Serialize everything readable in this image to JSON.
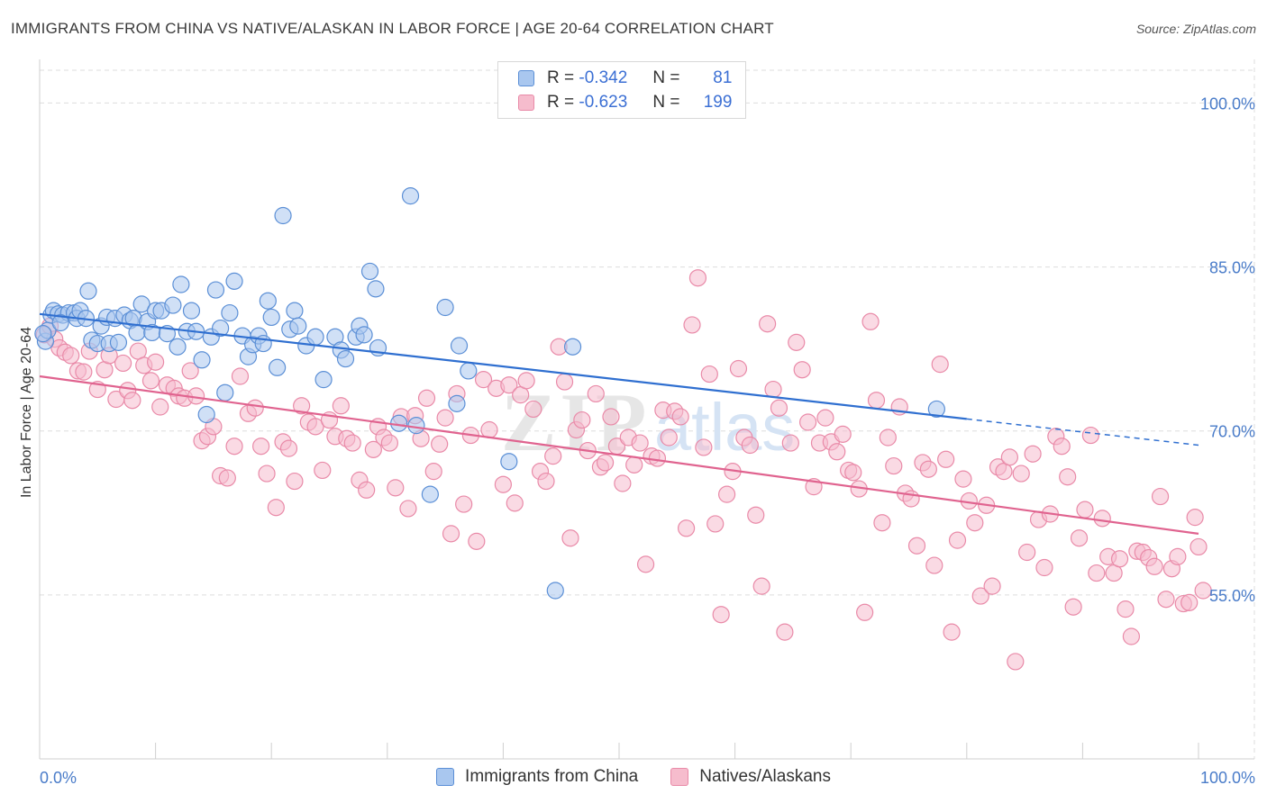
{
  "header": {
    "title": "IMMIGRANTS FROM CHINA VS NATIVE/ALASKAN IN LABOR FORCE | AGE 20-64 CORRELATION CHART",
    "source": "Source: ZipAtlas.com"
  },
  "legend": {
    "rows": [
      {
        "r_label": "R =",
        "r_value": "-0.342",
        "n_label": "N =",
        "n_value": "81"
      },
      {
        "r_label": "R =",
        "r_value": "-0.623",
        "n_label": "N =",
        "n_value": "199"
      }
    ]
  },
  "watermark": {
    "zip": "ZIP",
    "atlas": "atlas"
  },
  "colors": {
    "blue_fill": "#a9c7ef",
    "blue_stroke": "#5b8fd6",
    "blue_line": "#2f6fd0",
    "pink_fill": "#f6bccd",
    "pink_stroke": "#e98aa8",
    "pink_line": "#e0638f",
    "grid": "#dddddd",
    "tick_text": "#4a7cc9"
  },
  "chart_data": {
    "type": "scatter",
    "title": "IMMIGRANTS FROM CHINA VS NATIVE/ALASKAN IN LABOR FORCE | AGE 20-64 CORRELATION CHART",
    "xlabel": "",
    "ylabel": "In Labor Force | Age 20-64",
    "xlim": [
      0,
      100
    ],
    "ylim": [
      40,
      103
    ],
    "x_tick_labels": [
      "0.0%",
      "100.0%"
    ],
    "y_ticks": [
      55,
      70,
      85,
      100
    ],
    "y_tick_labels": [
      "55.0%",
      "70.0%",
      "85.0%",
      "100.0%"
    ],
    "grid": true,
    "legend_position": "top-center",
    "series": [
      {
        "name": "Immigrants from China",
        "color": "#a9c7ef",
        "trend": {
          "x": [
            0,
            80
          ],
          "y": [
            80.7,
            71.1
          ],
          "dashed_to_x": 100,
          "dashed_to_y": 68.7
        },
        "points": [
          [
            0.5,
            78.2
          ],
          [
            0.7,
            79.2
          ],
          [
            1.0,
            80.6
          ],
          [
            1.2,
            81.0
          ],
          [
            1.6,
            80.7
          ],
          [
            2.0,
            80.6
          ],
          [
            2.5,
            80.8
          ],
          [
            3.0,
            80.8
          ],
          [
            3.2,
            80.3
          ],
          [
            3.5,
            81.0
          ],
          [
            4.0,
            80.3
          ],
          [
            4.2,
            82.8
          ],
          [
            4.5,
            78.3
          ],
          [
            5.0,
            78.0
          ],
          [
            5.3,
            79.6
          ],
          [
            5.8,
            80.4
          ],
          [
            6.0,
            78.0
          ],
          [
            6.5,
            80.3
          ],
          [
            6.8,
            78.1
          ],
          [
            7.3,
            80.6
          ],
          [
            7.8,
            80.1
          ],
          [
            8.1,
            80.3
          ],
          [
            8.4,
            79.0
          ],
          [
            8.8,
            81.6
          ],
          [
            9.3,
            80.0
          ],
          [
            9.7,
            79.0
          ],
          [
            10.0,
            81.0
          ],
          [
            10.5,
            81.0
          ],
          [
            11.0,
            78.9
          ],
          [
            11.5,
            81.5
          ],
          [
            11.9,
            77.7
          ],
          [
            12.2,
            83.4
          ],
          [
            12.7,
            79.1
          ],
          [
            13.1,
            81.0
          ],
          [
            13.5,
            79.1
          ],
          [
            14.0,
            76.5
          ],
          [
            14.4,
            71.5
          ],
          [
            14.8,
            78.6
          ],
          [
            15.2,
            82.9
          ],
          [
            15.6,
            79.4
          ],
          [
            16.0,
            73.5
          ],
          [
            16.4,
            80.8
          ],
          [
            16.8,
            83.7
          ],
          [
            17.5,
            78.7
          ],
          [
            18.0,
            76.8
          ],
          [
            18.4,
            77.9
          ],
          [
            18.9,
            78.7
          ],
          [
            19.3,
            78.0
          ],
          [
            19.7,
            81.9
          ],
          [
            20.0,
            80.4
          ],
          [
            20.5,
            75.8
          ],
          [
            21.0,
            89.7
          ],
          [
            21.6,
            79.3
          ],
          [
            22.0,
            81.0
          ],
          [
            22.3,
            79.6
          ],
          [
            23.0,
            77.8
          ],
          [
            23.8,
            78.6
          ],
          [
            24.5,
            74.7
          ],
          [
            25.5,
            78.6
          ],
          [
            26.0,
            77.4
          ],
          [
            26.4,
            76.6
          ],
          [
            27.3,
            78.6
          ],
          [
            27.6,
            79.6
          ],
          [
            28.0,
            78.8
          ],
          [
            28.5,
            84.6
          ],
          [
            29.0,
            83.0
          ],
          [
            29.2,
            77.6
          ],
          [
            31.0,
            70.7
          ],
          [
            32.0,
            91.5
          ],
          [
            32.5,
            70.5
          ],
          [
            33.7,
            64.2
          ],
          [
            35.0,
            81.3
          ],
          [
            36.0,
            72.5
          ],
          [
            36.2,
            77.8
          ],
          [
            37.0,
            75.5
          ],
          [
            40.5,
            67.2
          ],
          [
            44.5,
            55.4
          ],
          [
            46.0,
            77.7
          ],
          [
            77.4,
            72.0
          ],
          [
            0.3,
            78.9
          ],
          [
            1.8,
            79.9
          ]
        ]
      },
      {
        "name": "Natives/Alaskans",
        "color": "#f6bccd",
        "trend": {
          "x": [
            0,
            100
          ],
          "y": [
            75.0,
            60.6
          ]
        },
        "points": [
          [
            0.4,
            78.8
          ],
          [
            0.9,
            79.6
          ],
          [
            1.3,
            78.4
          ],
          [
            1.7,
            77.6
          ],
          [
            2.2,
            77.2
          ],
          [
            2.7,
            76.9
          ],
          [
            3.3,
            75.5
          ],
          [
            3.8,
            75.4
          ],
          [
            4.3,
            77.3
          ],
          [
            5.0,
            73.8
          ],
          [
            5.6,
            75.6
          ],
          [
            6.0,
            76.9
          ],
          [
            6.6,
            72.9
          ],
          [
            7.2,
            76.2
          ],
          [
            7.6,
            73.7
          ],
          [
            8.0,
            72.8
          ],
          [
            8.5,
            77.3
          ],
          [
            9.0,
            76.0
          ],
          [
            9.6,
            74.6
          ],
          [
            10.0,
            76.3
          ],
          [
            10.4,
            72.2
          ],
          [
            11.0,
            74.2
          ],
          [
            11.6,
            73.9
          ],
          [
            12.0,
            73.2
          ],
          [
            12.5,
            73.0
          ],
          [
            13.0,
            75.5
          ],
          [
            13.5,
            73.2
          ],
          [
            14.0,
            69.1
          ],
          [
            14.5,
            69.5
          ],
          [
            15.0,
            70.4
          ],
          [
            15.6,
            65.9
          ],
          [
            16.2,
            65.7
          ],
          [
            16.8,
            68.6
          ],
          [
            17.3,
            75.0
          ],
          [
            18.0,
            71.6
          ],
          [
            18.6,
            72.1
          ],
          [
            19.1,
            68.6
          ],
          [
            19.6,
            66.1
          ],
          [
            20.4,
            63.0
          ],
          [
            21.0,
            69.0
          ],
          [
            21.5,
            68.4
          ],
          [
            22.0,
            65.4
          ],
          [
            22.6,
            72.3
          ],
          [
            23.2,
            70.8
          ],
          [
            23.8,
            70.4
          ],
          [
            24.4,
            66.4
          ],
          [
            25.0,
            71.0
          ],
          [
            25.5,
            69.5
          ],
          [
            26.0,
            72.3
          ],
          [
            26.5,
            69.3
          ],
          [
            27.0,
            68.9
          ],
          [
            27.6,
            65.5
          ],
          [
            28.2,
            64.6
          ],
          [
            28.8,
            68.3
          ],
          [
            29.2,
            70.4
          ],
          [
            29.7,
            69.4
          ],
          [
            30.2,
            68.9
          ],
          [
            30.7,
            64.8
          ],
          [
            31.2,
            71.3
          ],
          [
            31.8,
            62.9
          ],
          [
            32.4,
            71.4
          ],
          [
            32.9,
            69.3
          ],
          [
            33.4,
            73.0
          ],
          [
            34.0,
            66.3
          ],
          [
            34.5,
            68.8
          ],
          [
            35.0,
            71.2
          ],
          [
            35.5,
            60.6
          ],
          [
            36.0,
            73.4
          ],
          [
            36.6,
            63.3
          ],
          [
            37.2,
            69.6
          ],
          [
            37.7,
            59.9
          ],
          [
            38.3,
            74.7
          ],
          [
            38.8,
            70.1
          ],
          [
            39.4,
            73.9
          ],
          [
            40.0,
            65.1
          ],
          [
            40.5,
            74.2
          ],
          [
            41.0,
            63.4
          ],
          [
            41.5,
            73.3
          ],
          [
            42.0,
            74.6
          ],
          [
            42.6,
            72.0
          ],
          [
            43.2,
            66.3
          ],
          [
            43.7,
            65.4
          ],
          [
            44.3,
            67.7
          ],
          [
            44.8,
            77.7
          ],
          [
            45.3,
            74.5
          ],
          [
            45.8,
            60.2
          ],
          [
            46.3,
            70.1
          ],
          [
            46.8,
            71.0
          ],
          [
            47.3,
            68.2
          ],
          [
            48.0,
            73.4
          ],
          [
            48.4,
            66.7
          ],
          [
            48.8,
            67.1
          ],
          [
            49.3,
            71.3
          ],
          [
            49.8,
            68.6
          ],
          [
            50.3,
            65.2
          ],
          [
            50.8,
            69.4
          ],
          [
            51.3,
            66.9
          ],
          [
            51.8,
            68.9
          ],
          [
            52.3,
            57.8
          ],
          [
            52.8,
            67.7
          ],
          [
            53.3,
            67.5
          ],
          [
            53.8,
            71.9
          ],
          [
            54.3,
            69.4
          ],
          [
            54.8,
            71.8
          ],
          [
            55.3,
            71.3
          ],
          [
            55.8,
            61.1
          ],
          [
            56.3,
            79.7
          ],
          [
            56.8,
            84.0
          ],
          [
            57.3,
            68.5
          ],
          [
            57.8,
            75.2
          ],
          [
            58.3,
            61.5
          ],
          [
            58.8,
            53.2
          ],
          [
            59.3,
            64.2
          ],
          [
            59.8,
            66.3
          ],
          [
            60.3,
            75.7
          ],
          [
            60.8,
            69.4
          ],
          [
            61.3,
            68.7
          ],
          [
            61.8,
            62.3
          ],
          [
            62.3,
            55.8
          ],
          [
            62.8,
            79.8
          ],
          [
            63.3,
            73.8
          ],
          [
            63.8,
            72.1
          ],
          [
            64.3,
            51.6
          ],
          [
            64.8,
            68.9
          ],
          [
            65.3,
            78.1
          ],
          [
            65.8,
            75.6
          ],
          [
            66.3,
            70.8
          ],
          [
            66.8,
            64.9
          ],
          [
            67.3,
            68.9
          ],
          [
            67.8,
            71.2
          ],
          [
            68.3,
            69.0
          ],
          [
            68.8,
            68.1
          ],
          [
            69.3,
            69.7
          ],
          [
            69.8,
            66.4
          ],
          [
            70.2,
            66.2
          ],
          [
            70.7,
            64.7
          ],
          [
            71.2,
            53.4
          ],
          [
            71.7,
            80.0
          ],
          [
            72.2,
            72.8
          ],
          [
            72.7,
            61.6
          ],
          [
            73.2,
            69.4
          ],
          [
            73.7,
            66.8
          ],
          [
            74.2,
            72.2
          ],
          [
            74.7,
            64.3
          ],
          [
            75.2,
            63.8
          ],
          [
            75.7,
            59.5
          ],
          [
            76.2,
            67.1
          ],
          [
            76.7,
            66.5
          ],
          [
            77.2,
            57.7
          ],
          [
            77.7,
            76.1
          ],
          [
            78.2,
            67.4
          ],
          [
            78.7,
            51.6
          ],
          [
            79.2,
            60.0
          ],
          [
            79.7,
            65.6
          ],
          [
            80.2,
            63.6
          ],
          [
            80.7,
            61.6
          ],
          [
            81.2,
            54.9
          ],
          [
            81.7,
            63.2
          ],
          [
            82.2,
            55.8
          ],
          [
            82.7,
            66.7
          ],
          [
            83.2,
            66.3
          ],
          [
            83.7,
            67.6
          ],
          [
            84.2,
            48.9
          ],
          [
            84.7,
            66.1
          ],
          [
            85.2,
            58.9
          ],
          [
            85.7,
            67.9
          ],
          [
            86.2,
            61.9
          ],
          [
            86.7,
            57.5
          ],
          [
            87.2,
            62.4
          ],
          [
            87.7,
            69.5
          ],
          [
            88.2,
            68.6
          ],
          [
            88.7,
            65.8
          ],
          [
            89.2,
            53.9
          ],
          [
            89.7,
            60.2
          ],
          [
            90.2,
            62.8
          ],
          [
            90.7,
            69.6
          ],
          [
            91.2,
            57.0
          ],
          [
            91.7,
            62.0
          ],
          [
            92.2,
            58.5
          ],
          [
            92.7,
            57.0
          ],
          [
            93.2,
            58.3
          ],
          [
            93.7,
            53.7
          ],
          [
            94.2,
            51.2
          ],
          [
            94.7,
            59.0
          ],
          [
            95.2,
            58.9
          ],
          [
            95.7,
            58.4
          ],
          [
            96.2,
            57.6
          ],
          [
            96.7,
            64.0
          ],
          [
            97.2,
            54.6
          ],
          [
            97.7,
            57.4
          ],
          [
            98.2,
            58.5
          ],
          [
            98.7,
            54.2
          ],
          [
            99.2,
            54.3
          ],
          [
            99.7,
            62.1
          ],
          [
            100.0,
            59.4
          ],
          [
            100.4,
            55.4
          ]
        ]
      }
    ]
  }
}
